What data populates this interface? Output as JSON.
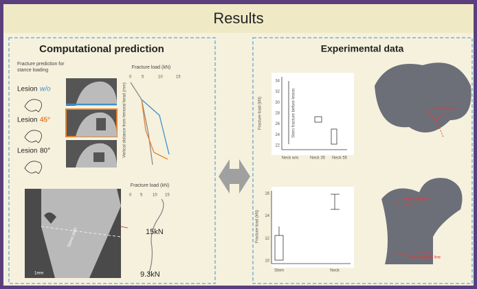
{
  "header": {
    "title": "Results"
  },
  "left": {
    "title": "Computational prediction",
    "subtitle": [
      "Fracture prediction for",
      "stance loading"
    ],
    "lesions": [
      {
        "prefix": "Lesion",
        "suffix": "w/o"
      },
      {
        "prefix": "Lesion",
        "suffix": "45°"
      },
      {
        "prefix": "Lesion",
        "suffix": "80°"
      }
    ],
    "plot_top": {
      "xlabel": "Fracture load (kN)",
      "ylabel": "Vertical distance from femoral head (mm)",
      "xticks": [
        "0",
        "5",
        "10",
        "15"
      ]
    },
    "plot_bottom": {
      "xlabel": "Fracture load (kN)",
      "xticks": [
        "0",
        "5",
        "10",
        "15"
      ],
      "annotations": [
        "15kN",
        "9.3kN"
      ],
      "scale": "1mm",
      "bone_label": "Stress path"
    }
  },
  "right": {
    "title": "Experimental data",
    "plot_top": {
      "ylabel": "Fracture load (kN)",
      "yticks": [
        "22",
        "24",
        "26",
        "28",
        "30",
        "32",
        "34"
      ],
      "categories": [
        "Neck w/o",
        "Neck 35",
        "Neck 55"
      ],
      "annotation": "Stem fracture before lesion"
    },
    "plot_bottom": {
      "ylabel": "Fracture load (kN)",
      "yticks": [
        "10",
        "12",
        "14",
        "16"
      ],
      "categories": [
        "Stem",
        "Neck"
      ]
    },
    "image_top_labels": [
      "Neck fracture"
    ],
    "image_bottom_labels": [
      "Neck fracture",
      "Stem fracture line"
    ]
  }
}
